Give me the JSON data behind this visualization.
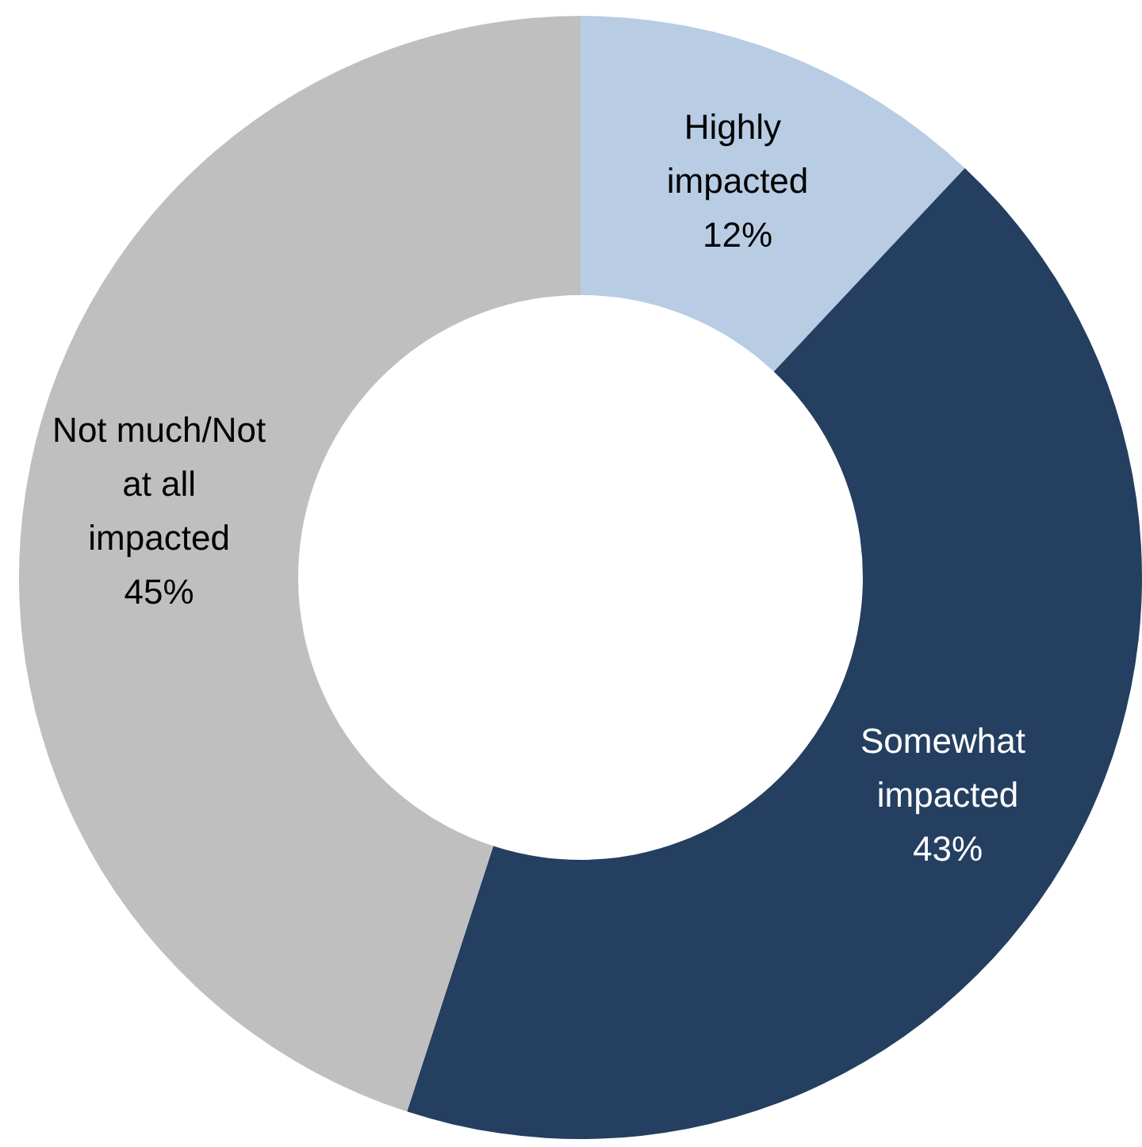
{
  "chart_data": {
    "type": "donut",
    "categories": [
      "Highly impacted",
      "Somewhat impacted",
      "Not much/Not at all impacted"
    ],
    "values": [
      12,
      43,
      45
    ],
    "colors": [
      "#b8cce4",
      "#243f60",
      "#bfbfbf"
    ],
    "value_labels": [
      "12%",
      "43%",
      "45%"
    ]
  }
}
